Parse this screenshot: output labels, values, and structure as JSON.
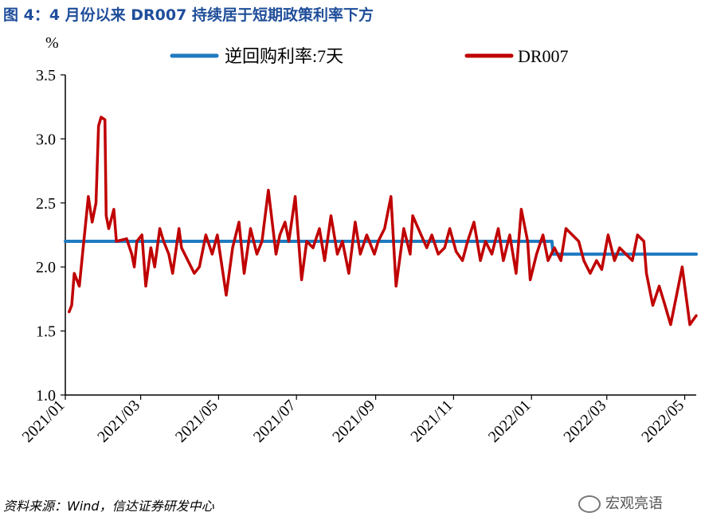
{
  "title": "图 4：4 月份以来 DR007 持续居于短期政策利率下方",
  "source": "资料来源：Wind，信达证券研发中心",
  "watermark": "宏观亮语",
  "colors": {
    "title": "#1f4e9a",
    "repo": "#1f7ac0",
    "dr007": "#c00000"
  },
  "chart_data": {
    "type": "line",
    "unit_label": "%",
    "xlabel": "",
    "ylabel": "",
    "ylim": [
      1.0,
      3.5
    ],
    "yticks": [
      "1.0",
      "1.5",
      "2.0",
      "2.5",
      "3.0",
      "3.5"
    ],
    "xlim": [
      "2021-01-01",
      "2022-05-10"
    ],
    "xticks": [
      "2021/01",
      "2021/03",
      "2021/05",
      "2021/07",
      "2021/09",
      "2021/11",
      "2022/01",
      "2022/03",
      "2022/05"
    ],
    "legend_position": "top",
    "series": [
      {
        "name": "逆回购利率:7天",
        "x": [
          "2021-01-01",
          "2022-01-17",
          "2022-01-18",
          "2022-05-10"
        ],
        "y": [
          2.2,
          2.2,
          2.1,
          2.1
        ]
      },
      {
        "name": "DR007",
        "x": [
          "2021-01-04",
          "2021-01-06",
          "2021-01-08",
          "2021-01-12",
          "2021-01-15",
          "2021-01-19",
          "2021-01-22",
          "2021-01-25",
          "2021-01-27",
          "2021-01-29",
          "2021-02-01",
          "2021-02-02",
          "2021-02-04",
          "2021-02-08",
          "2021-02-10",
          "2021-02-18",
          "2021-02-22",
          "2021-02-24",
          "2021-02-26",
          "2021-03-02",
          "2021-03-05",
          "2021-03-09",
          "2021-03-12",
          "2021-03-16",
          "2021-03-19",
          "2021-03-23",
          "2021-03-26",
          "2021-03-31",
          "2021-04-02",
          "2021-04-07",
          "2021-04-12",
          "2021-04-16",
          "2021-04-21",
          "2021-04-26",
          "2021-04-30",
          "2021-05-07",
          "2021-05-12",
          "2021-05-17",
          "2021-05-21",
          "2021-05-26",
          "2021-05-31",
          "2021-06-04",
          "2021-06-09",
          "2021-06-15",
          "2021-06-18",
          "2021-06-22",
          "2021-06-25",
          "2021-06-30",
          "2021-07-05",
          "2021-07-09",
          "2021-07-14",
          "2021-07-19",
          "2021-07-23",
          "2021-07-28",
          "2021-08-02",
          "2021-08-06",
          "2021-08-11",
          "2021-08-16",
          "2021-08-20",
          "2021-08-25",
          "2021-08-31",
          "2021-09-03",
          "2021-09-08",
          "2021-09-13",
          "2021-09-17",
          "2021-09-23",
          "2021-09-28",
          "2021-09-30",
          "2021-10-11",
          "2021-10-15",
          "2021-10-20",
          "2021-10-25",
          "2021-10-29",
          "2021-11-03",
          "2021-11-08",
          "2021-11-12",
          "2021-11-17",
          "2021-11-22",
          "2021-11-26",
          "2021-12-01",
          "2021-12-06",
          "2021-12-10",
          "2021-12-15",
          "2021-12-20",
          "2021-12-24",
          "2021-12-29",
          "2021-12-31",
          "2022-01-05",
          "2022-01-10",
          "2022-01-14",
          "2022-01-19",
          "2022-01-24",
          "2022-01-28",
          "2022-02-07",
          "2022-02-11",
          "2022-02-16",
          "2022-02-21",
          "2022-02-25",
          "2022-03-02",
          "2022-03-07",
          "2022-03-11",
          "2022-03-16",
          "2022-03-21",
          "2022-03-25",
          "2022-03-30",
          "2022-04-01",
          "2022-04-06",
          "2022-04-11",
          "2022-04-15",
          "2022-04-20",
          "2022-04-25",
          "2022-04-29",
          "2022-05-05",
          "2022-05-10"
        ],
        "y": [
          1.65,
          1.7,
          1.95,
          1.85,
          2.15,
          2.55,
          2.35,
          2.5,
          3.1,
          3.17,
          3.15,
          2.4,
          2.3,
          2.45,
          2.2,
          2.22,
          2.1,
          2.0,
          2.2,
          2.25,
          1.85,
          2.15,
          2.0,
          2.3,
          2.2,
          2.1,
          1.95,
          2.3,
          2.15,
          2.05,
          1.95,
          2.0,
          2.25,
          2.1,
          2.25,
          1.78,
          2.15,
          2.35,
          1.95,
          2.3,
          2.1,
          2.2,
          2.6,
          2.1,
          2.25,
          2.35,
          2.2,
          2.55,
          1.9,
          2.2,
          2.15,
          2.3,
          2.05,
          2.4,
          2.1,
          2.2,
          1.95,
          2.35,
          2.1,
          2.25,
          2.1,
          2.2,
          2.3,
          2.55,
          1.85,
          2.3,
          2.1,
          2.4,
          2.15,
          2.25,
          2.1,
          2.15,
          2.3,
          2.12,
          2.05,
          2.2,
          2.35,
          2.05,
          2.2,
          2.1,
          2.3,
          2.05,
          2.25,
          1.95,
          2.45,
          2.2,
          1.9,
          2.1,
          2.25,
          2.05,
          2.15,
          2.05,
          2.3,
          2.2,
          2.05,
          1.95,
          2.05,
          1.98,
          2.25,
          2.05,
          2.15,
          2.1,
          2.05,
          2.25,
          2.2,
          1.95,
          1.7,
          1.85,
          1.72,
          1.55,
          1.8,
          2.0,
          1.55,
          1.62
        ]
      }
    ]
  }
}
